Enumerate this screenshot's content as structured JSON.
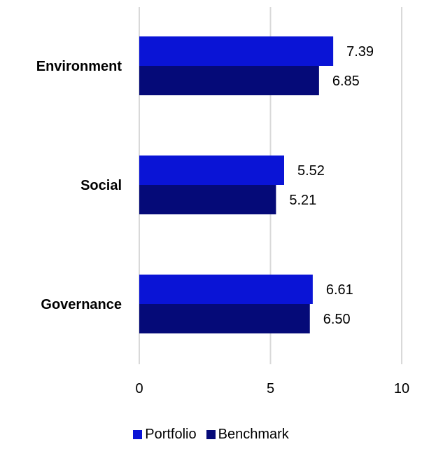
{
  "chart_data": {
    "type": "bar",
    "orientation": "horizontal",
    "categories": [
      "Environment",
      "Social",
      "Governance"
    ],
    "series": [
      {
        "name": "Portfolio",
        "values": [
          7.39,
          5.52,
          6.61
        ],
        "labels": [
          "7.39",
          "5.52",
          "6.61"
        ],
        "color": "#0a14d6"
      },
      {
        "name": "Benchmark",
        "values": [
          6.85,
          5.21,
          6.5
        ],
        "labels": [
          "6.85",
          "5.21",
          "6.50"
        ],
        "color": "#050a78"
      }
    ],
    "xlim": [
      0,
      10
    ],
    "xticks": [
      "0",
      "5",
      "10"
    ],
    "grid": true,
    "legend_position": "bottom"
  }
}
